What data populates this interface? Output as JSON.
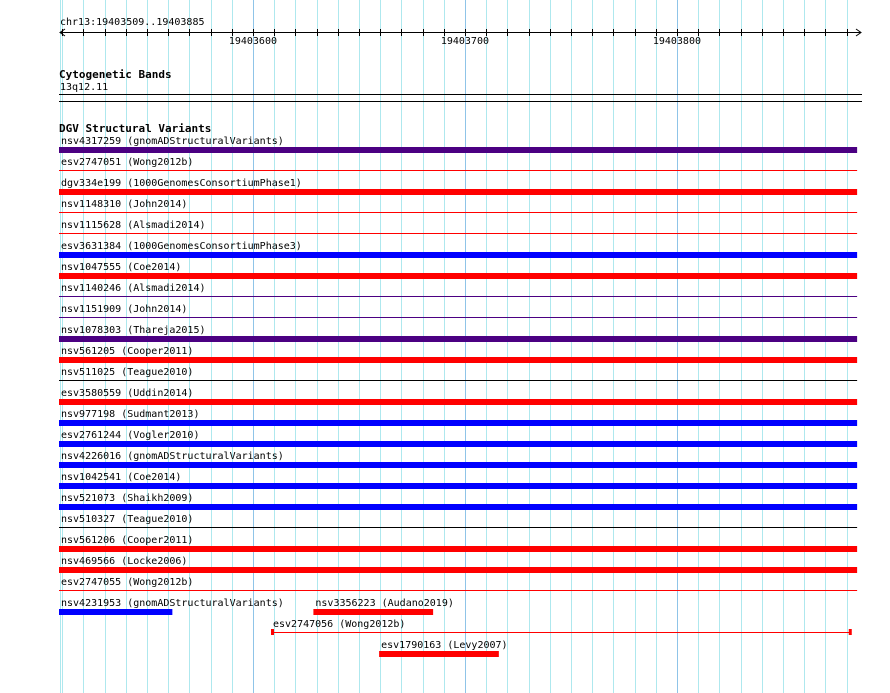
{
  "view": {
    "chrom": "chr13",
    "start": 19403509,
    "end": 19403885,
    "location_label": "chr13:19403509..19403885"
  },
  "ruler": {
    "major_ticks": [
      {
        "bp": 19403600,
        "label": "19403600"
      },
      {
        "bp": 19403700,
        "label": "19403700"
      },
      {
        "bp": 19403800,
        "label": "19403800"
      }
    ]
  },
  "cytobands": {
    "title": "Cytogenetic Bands",
    "band": "13q12.11"
  },
  "dgv": {
    "title": "DGV Structural Variants",
    "colors": {
      "purple": "#4b0082",
      "red": "#ff0000",
      "blue": "#0000ff",
      "black": "#000000"
    },
    "features": [
      {
        "label": "nsv4317259 (gnomADStructuralVariants)",
        "row": 0,
        "start": 19403509,
        "end": 19403885,
        "style": "thick",
        "color": "#4b0082"
      },
      {
        "label": "esv2747051 (Wong2012b)",
        "row": 1,
        "start": 19403509,
        "end": 19403885,
        "style": "thin",
        "color": "#ff0000"
      },
      {
        "label": "dgv334e199 (1000GenomesConsortiumPhase1)",
        "row": 2,
        "start": 19403509,
        "end": 19403885,
        "style": "thick",
        "color": "#ff0000"
      },
      {
        "label": "nsv1148310 (John2014)",
        "row": 3,
        "start": 19403509,
        "end": 19403885,
        "style": "thin",
        "color": "#ff0000"
      },
      {
        "label": "nsv1115628 (Alsmadi2014)",
        "row": 4,
        "start": 19403509,
        "end": 19403885,
        "style": "thin",
        "color": "#ff0000"
      },
      {
        "label": "esv3631384 (1000GenomesConsortiumPhase3)",
        "row": 5,
        "start": 19403509,
        "end": 19403885,
        "style": "thick",
        "color": "#0000ff"
      },
      {
        "label": "nsv1047555 (Coe2014)",
        "row": 6,
        "start": 19403509,
        "end": 19403885,
        "style": "thick",
        "color": "#ff0000"
      },
      {
        "label": "nsv1140246 (Alsmadi2014)",
        "row": 7,
        "start": 19403509,
        "end": 19403885,
        "style": "thin",
        "color": "#4b0082"
      },
      {
        "label": "nsv1151909 (John2014)",
        "row": 8,
        "start": 19403509,
        "end": 19403885,
        "style": "thin",
        "color": "#4b0082"
      },
      {
        "label": "nsv1078303 (Thareja2015)",
        "row": 9,
        "start": 19403509,
        "end": 19403885,
        "style": "thick",
        "color": "#4b0082"
      },
      {
        "label": "nsv561205 (Cooper2011)",
        "row": 10,
        "start": 19403509,
        "end": 19403885,
        "style": "thick",
        "color": "#ff0000"
      },
      {
        "label": "nsv511025 (Teague2010)",
        "row": 11,
        "start": 19403509,
        "end": 19403885,
        "style": "thin",
        "color": "#000000"
      },
      {
        "label": "esv3580559 (Uddin2014)",
        "row": 12,
        "start": 19403509,
        "end": 19403885,
        "style": "thick",
        "color": "#ff0000"
      },
      {
        "label": "nsv977198 (Sudmant2013)",
        "row": 13,
        "start": 19403509,
        "end": 19403885,
        "style": "thick",
        "color": "#0000ff"
      },
      {
        "label": "esv2761244 (Vogler2010)",
        "row": 14,
        "start": 19403509,
        "end": 19403885,
        "style": "thick",
        "color": "#0000ff"
      },
      {
        "label": "nsv4226016 (gnomADStructuralVariants)",
        "row": 15,
        "start": 19403509,
        "end": 19403885,
        "style": "thick",
        "color": "#0000ff"
      },
      {
        "label": "nsv1042541 (Coe2014)",
        "row": 16,
        "start": 19403509,
        "end": 19403885,
        "style": "thick",
        "color": "#0000ff"
      },
      {
        "label": "nsv521073 (Shaikh2009)",
        "row": 17,
        "start": 19403509,
        "end": 19403885,
        "style": "thick",
        "color": "#0000ff"
      },
      {
        "label": "nsv510327 (Teague2010)",
        "row": 18,
        "start": 19403509,
        "end": 19403885,
        "style": "thin",
        "color": "#000000"
      },
      {
        "label": "nsv561206 (Cooper2011)",
        "row": 19,
        "start": 19403509,
        "end": 19403885,
        "style": "thick",
        "color": "#ff0000"
      },
      {
        "label": "nsv469566 (Locke2006)",
        "row": 20,
        "start": 19403509,
        "end": 19403885,
        "style": "thick",
        "color": "#ff0000"
      },
      {
        "label": "esv2747055 (Wong2012b)",
        "row": 21,
        "start": 19403509,
        "end": 19403885,
        "style": "thin",
        "color": "#ff0000"
      },
      {
        "label": "nsv4231953 (gnomADStructuralVariants)",
        "row": 22,
        "start": 19403509,
        "end": 19403562,
        "style": "thick",
        "color": "#0000ff"
      },
      {
        "label": "nsv3356223 (Audano2019)",
        "row": 22,
        "start": 19403629,
        "end": 19403685,
        "style": "thick",
        "color": "#ff0000"
      },
      {
        "label": "esv2747056 (Wong2012b)",
        "row": 23,
        "start": 19403609,
        "end": 19403882,
        "style": "capped",
        "color": "#ff0000"
      },
      {
        "label": "esv1790163 (Levy2007)",
        "row": 24,
        "start": 19403660,
        "end": 19403716,
        "style": "thick",
        "color": "#ff0000"
      }
    ]
  }
}
